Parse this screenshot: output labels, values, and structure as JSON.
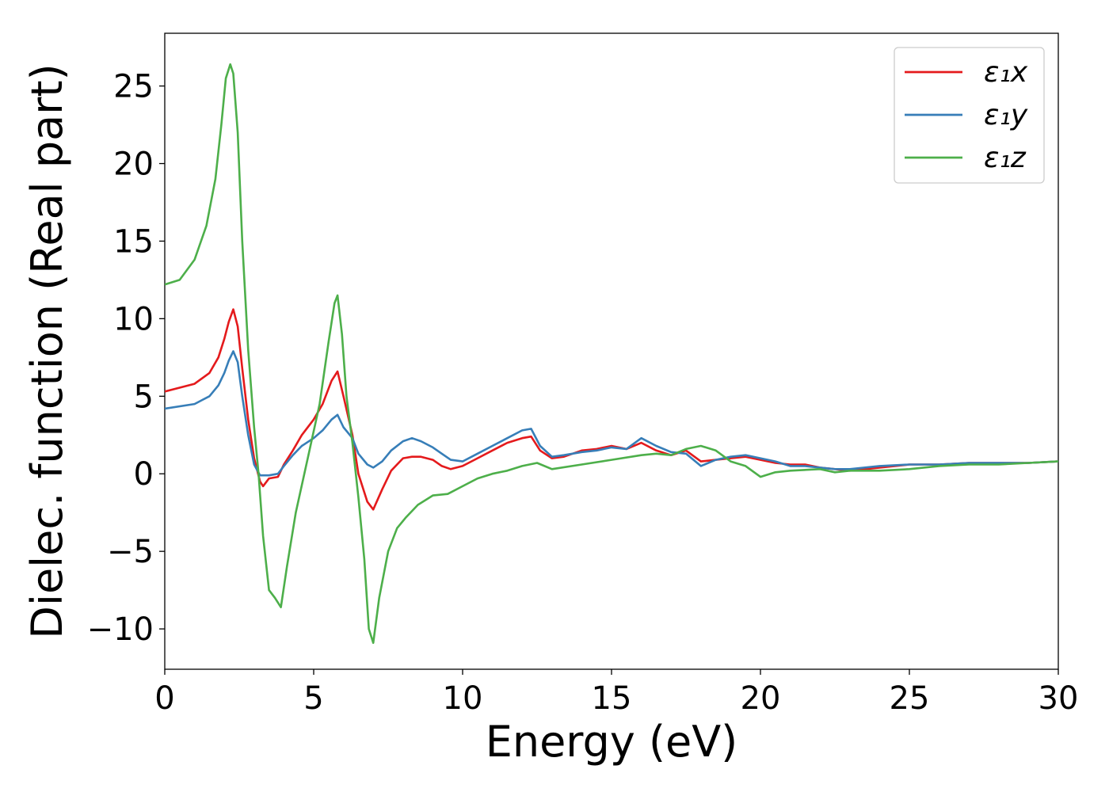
{
  "chart_data": {
    "type": "line",
    "xlabel": "Energy (eV)",
    "ylabel": "Dielec. function (Real part)",
    "xlim": [
      0,
      30
    ],
    "ylim": [
      -12.6,
      28.4
    ],
    "x_ticks": [
      0,
      5,
      10,
      15,
      20,
      25,
      30
    ],
    "y_ticks": [
      -10,
      -5,
      0,
      5,
      10,
      15,
      20,
      25
    ],
    "x_tick_labels": [
      "0",
      "5",
      "10",
      "15",
      "20",
      "25",
      "30"
    ],
    "y_tick_labels": [
      "−10",
      "−5",
      "0",
      "5",
      "10",
      "15",
      "20",
      "25"
    ],
    "grid": false,
    "legend_position": "top-right",
    "series": [
      {
        "name": "ε₁x",
        "color": "#e41a1c",
        "x": [
          0,
          1.0,
          1.5,
          1.8,
          2.0,
          2.15,
          2.3,
          2.45,
          2.6,
          2.8,
          3.0,
          3.2,
          3.3,
          3.5,
          3.8,
          4.0,
          4.3,
          4.6,
          5.0,
          5.3,
          5.6,
          5.8,
          6.0,
          6.3,
          6.5,
          6.8,
          7.0,
          7.3,
          7.6,
          8.0,
          8.3,
          8.6,
          9.0,
          9.3,
          9.6,
          10.0,
          10.5,
          11.0,
          11.5,
          12.0,
          12.3,
          12.6,
          13.0,
          13.4,
          14.0,
          14.5,
          15.0,
          15.5,
          16.0,
          16.5,
          17.0,
          17.5,
          18.0,
          18.5,
          19.0,
          19.5,
          20.0,
          20.5,
          21.0,
          21.5,
          22.0,
          22.5,
          23.0,
          24.0,
          25.0,
          26.0,
          27.0,
          28.0,
          29.0,
          30.0
        ],
        "values": [
          5.3,
          5.8,
          6.5,
          7.5,
          8.7,
          9.8,
          10.6,
          9.5,
          6.8,
          3.5,
          1.0,
          -0.5,
          -0.8,
          -0.3,
          -0.2,
          0.6,
          1.5,
          2.5,
          3.5,
          4.5,
          6.0,
          6.6,
          5.0,
          2.5,
          0.0,
          -1.8,
          -2.3,
          -1.0,
          0.2,
          1.0,
          1.1,
          1.1,
          0.9,
          0.5,
          0.3,
          0.5,
          1.0,
          1.5,
          2.0,
          2.3,
          2.4,
          1.5,
          1.0,
          1.1,
          1.5,
          1.6,
          1.8,
          1.6,
          2.0,
          1.5,
          1.2,
          1.5,
          0.8,
          0.9,
          1.0,
          1.1,
          0.9,
          0.7,
          0.6,
          0.6,
          0.4,
          0.3,
          0.2,
          0.4,
          0.6,
          0.6,
          0.7,
          0.7,
          0.7,
          0.8
        ]
      },
      {
        "name": "ε₁y",
        "color": "#377eb8",
        "x": [
          0,
          1.0,
          1.5,
          1.8,
          2.0,
          2.15,
          2.3,
          2.45,
          2.6,
          2.8,
          3.0,
          3.2,
          3.3,
          3.5,
          3.8,
          4.0,
          4.3,
          4.6,
          5.0,
          5.3,
          5.6,
          5.8,
          6.0,
          6.3,
          6.5,
          6.8,
          7.0,
          7.3,
          7.6,
          8.0,
          8.3,
          8.6,
          9.0,
          9.3,
          9.6,
          10.0,
          10.5,
          11.0,
          11.5,
          12.0,
          12.3,
          12.6,
          13.0,
          13.4,
          14.0,
          14.5,
          15.0,
          15.5,
          16.0,
          16.5,
          17.0,
          17.5,
          18.0,
          18.5,
          19.0,
          19.5,
          20.0,
          20.5,
          21.0,
          21.5,
          22.0,
          22.5,
          23.0,
          24.0,
          25.0,
          26.0,
          27.0,
          28.0,
          29.0,
          30.0
        ],
        "values": [
          4.2,
          4.5,
          5.0,
          5.7,
          6.5,
          7.3,
          7.9,
          7.2,
          5.0,
          2.5,
          0.6,
          -0.1,
          -0.1,
          -0.1,
          0.0,
          0.5,
          1.2,
          1.8,
          2.3,
          2.8,
          3.5,
          3.8,
          3.0,
          2.3,
          1.3,
          0.6,
          0.4,
          0.8,
          1.5,
          2.1,
          2.3,
          2.1,
          1.7,
          1.3,
          0.9,
          0.8,
          1.3,
          1.8,
          2.3,
          2.8,
          2.9,
          1.8,
          1.1,
          1.2,
          1.4,
          1.5,
          1.7,
          1.6,
          2.3,
          1.8,
          1.4,
          1.3,
          0.5,
          0.9,
          1.1,
          1.2,
          1.0,
          0.8,
          0.5,
          0.5,
          0.4,
          0.3,
          0.3,
          0.5,
          0.6,
          0.6,
          0.7,
          0.7,
          0.7,
          0.8
        ]
      },
      {
        "name": "ε₁z",
        "color": "#4daf4a",
        "x": [
          0,
          0.5,
          1.0,
          1.4,
          1.7,
          1.9,
          2.05,
          2.2,
          2.3,
          2.45,
          2.6,
          2.8,
          3.0,
          3.15,
          3.3,
          3.5,
          3.7,
          3.9,
          4.1,
          4.4,
          4.8,
          5.2,
          5.5,
          5.7,
          5.8,
          5.95,
          6.1,
          6.3,
          6.5,
          6.7,
          6.85,
          7.0,
          7.2,
          7.5,
          7.8,
          8.1,
          8.5,
          9.0,
          9.5,
          10.0,
          10.5,
          11.0,
          11.5,
          12.0,
          12.5,
          13.0,
          14.0,
          15.0,
          16.0,
          16.5,
          17.0,
          17.5,
          18.0,
          18.5,
          19.0,
          19.5,
          20.0,
          20.5,
          21.0,
          22.0,
          22.5,
          23.0,
          24.0,
          25.0,
          26.0,
          27.0,
          28.0,
          29.0,
          30.0
        ],
        "values": [
          12.2,
          12.5,
          13.8,
          16.0,
          19.0,
          22.5,
          25.5,
          26.4,
          25.8,
          22.0,
          15.0,
          8.0,
          3.0,
          0.0,
          -4.0,
          -7.5,
          -8.0,
          -8.6,
          -6.0,
          -2.5,
          1.0,
          4.5,
          8.5,
          11.0,
          11.5,
          9.0,
          5.0,
          2.0,
          -1.5,
          -5.5,
          -10.0,
          -10.9,
          -8.0,
          -5.0,
          -3.5,
          -2.8,
          -2.0,
          -1.4,
          -1.3,
          -0.8,
          -0.3,
          0.0,
          0.2,
          0.5,
          0.7,
          0.3,
          0.6,
          0.9,
          1.2,
          1.3,
          1.2,
          1.6,
          1.8,
          1.5,
          0.8,
          0.5,
          -0.2,
          0.1,
          0.2,
          0.3,
          0.1,
          0.2,
          0.2,
          0.3,
          0.5,
          0.6,
          0.6,
          0.7,
          0.8
        ]
      }
    ]
  }
}
